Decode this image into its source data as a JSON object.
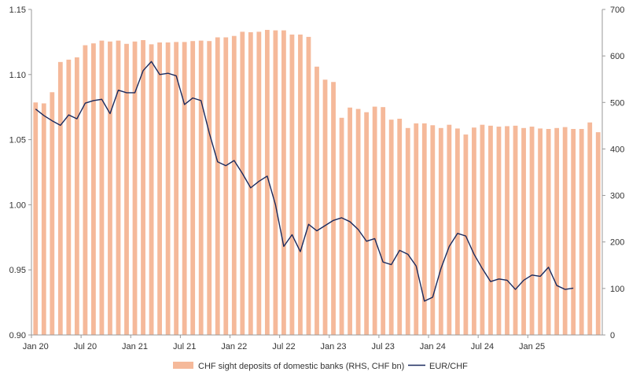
{
  "chart_data": {
    "type": "bar+line",
    "title": "",
    "xlabel": "",
    "ylabel_left": "",
    "ylabel_right": "",
    "x_tick_labels": [
      "Jan 20",
      "Jul 20",
      "Jan 21",
      "Jul 21",
      "Jan 22",
      "Jul 22",
      "Jan 23",
      "Jul 23",
      "Jan 24",
      "Jul 24",
      "Jan 25"
    ],
    "y_left": {
      "range": [
        0.9,
        1.15
      ],
      "ticks": [
        "0.90",
        "0.95",
        "1.00",
        "1.05",
        "1.10",
        "1.15"
      ]
    },
    "y_right": {
      "range": [
        0,
        700
      ],
      "ticks": [
        "0",
        "100",
        "200",
        "300",
        "400",
        "500",
        "600",
        "700"
      ]
    },
    "legend_position": "bottom-center",
    "grid": false,
    "series": [
      {
        "name": "CHF sight deposits of domestic banks (RHS, CHF bn)",
        "kind": "bar",
        "axis": "right",
        "color": "#f5b99a",
        "values": [
          500,
          498,
          522,
          587,
          592,
          597,
          623,
          627,
          633,
          631,
          633,
          626,
          631,
          634,
          625,
          629,
          629,
          630,
          630,
          632,
          633,
          632,
          640,
          640,
          643,
          652,
          651,
          652,
          656,
          655,
          655,
          646,
          646,
          641,
          577,
          549,
          544,
          467,
          489,
          486,
          479,
          491,
          490,
          463,
          465,
          445,
          455,
          455,
          451,
          445,
          452,
          444,
          431,
          446,
          452,
          450,
          448,
          449,
          450,
          445,
          448,
          444,
          443,
          445,
          447,
          443,
          443,
          457,
          436
        ]
      },
      {
        "name": "EUR/CHF",
        "kind": "line",
        "axis": "left",
        "color": "#1a2a5e",
        "values": [
          1.0735,
          1.0685,
          1.0645,
          1.061,
          1.069,
          1.066,
          1.078,
          1.08,
          1.081,
          1.07,
          1.088,
          1.086,
          1.086,
          1.103,
          1.11,
          1.1,
          1.101,
          1.099,
          1.077,
          1.082,
          1.08,
          1.055,
          1.033,
          1.03,
          1.034,
          1.024,
          1.013,
          1.018,
          1.022,
          1.0,
          0.968,
          0.977,
          0.964,
          0.985,
          0.98,
          0.984,
          0.988,
          0.99,
          0.987,
          0.981,
          0.972,
          0.974,
          0.956,
          0.954,
          0.965,
          0.962,
          0.953,
          0.926,
          0.929,
          0.951,
          0.968,
          0.978,
          0.976,
          0.962,
          0.951,
          0.941,
          0.943,
          0.942,
          0.935,
          0.942,
          0.946,
          0.945,
          0.952,
          0.938,
          0.935,
          0.936
        ]
      }
    ]
  },
  "legend": {
    "bar_label": "CHF sight deposits of domestic banks (RHS, CHF bn)",
    "line_label": "EUR/CHF"
  },
  "colors": {
    "bar": "#f5b99a",
    "line": "#1a2a5e",
    "axis": "#999999"
  }
}
